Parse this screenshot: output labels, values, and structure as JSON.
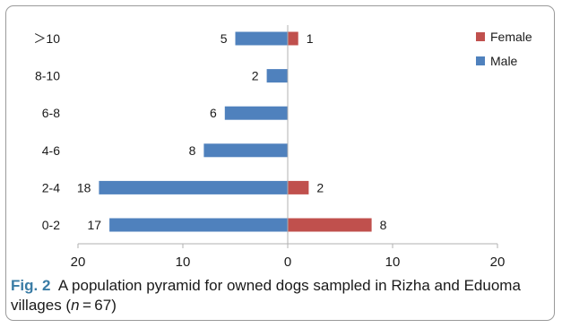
{
  "chart_data": {
    "type": "bar",
    "orientation": "horizontal",
    "population_pyramid": true,
    "categories": [
      "0-2",
      "2-4",
      "4-6",
      "6-8",
      "8-10",
      ">10"
    ],
    "category_labels": [
      "0-2",
      "2-4",
      "4-6",
      "6-8",
      "8-10",
      "＞10"
    ],
    "series": [
      {
        "name": "Female",
        "values": [
          8,
          2,
          0,
          0,
          0,
          1
        ],
        "color": "#c0504d",
        "side": "right"
      },
      {
        "name": "Male",
        "values": [
          17,
          18,
          8,
          6,
          2,
          5
        ],
        "color": "#4f81bd",
        "side": "left"
      }
    ],
    "data_labels": {
      "Female": [
        "8",
        "2",
        "",
        "",
        "",
        "1"
      ],
      "Male": [
        "17",
        "18",
        "8",
        "6",
        "2",
        "5"
      ]
    },
    "xlim": [
      -20,
      20
    ],
    "xticks": [
      -20,
      -10,
      0,
      10,
      20
    ],
    "xtick_labels": [
      "20",
      "10",
      "0",
      "10",
      "20"
    ],
    "legend": {
      "position": "top-right",
      "entries": [
        "Female",
        "Male"
      ]
    },
    "grid": false
  },
  "caption": {
    "label": "Fig. 2",
    "text_before": "A population pyramid for owned dogs sampled in Rizha and Eduoma villages (",
    "n_var": "n",
    "text_after": " = 67)"
  },
  "colors": {
    "female": "#c0504d",
    "male": "#4f81bd",
    "caption_label": "#3a7ca5"
  }
}
